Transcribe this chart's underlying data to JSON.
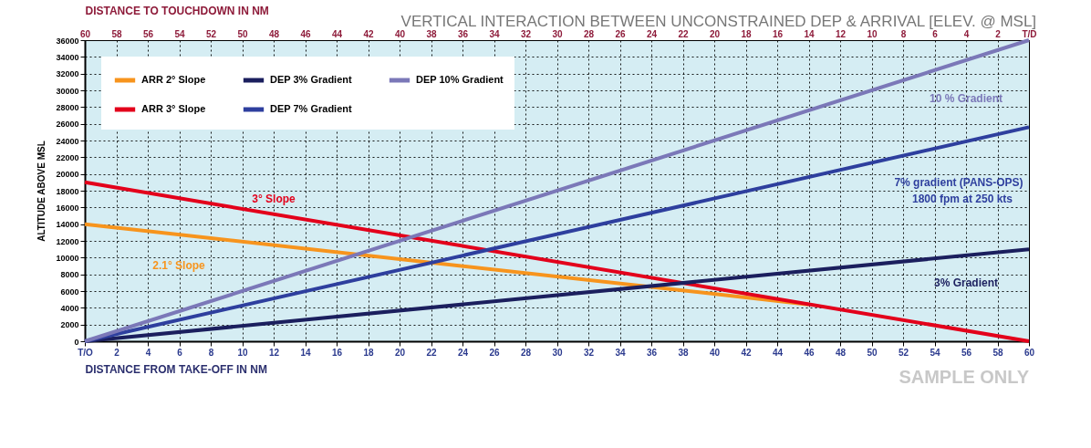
{
  "chart_data": {
    "type": "line",
    "title": "VERTICAL INTERACTION BETWEEN UNCONSTRAINED DEP & ARRIVAL [ELEV. @ MSL]",
    "xlabel": "DISTANCE FROM TAKE-OFF IN NM",
    "x2label": "DISTANCE TO TOUCHDOWN IN NM",
    "ylabel": "ALTITUDE ABOVE MSL",
    "series": [
      {
        "name": "ARR 2° Slope",
        "color": "#f7941d",
        "x": [
          0,
          46
        ],
        "values": [
          14000,
          4400
        ]
      },
      {
        "name": "ARR 3° Slope",
        "color": "#e3001b",
        "x": [
          0,
          60
        ],
        "values": [
          19000,
          0
        ]
      },
      {
        "name": "DEP 3% Gradient",
        "color": "#1b1f5e",
        "x": [
          0,
          60
        ],
        "values": [
          0,
          11000
        ]
      },
      {
        "name": "DEP 7% Gradient",
        "color": "#2e3f9e",
        "x": [
          0,
          60
        ],
        "values": [
          0,
          25600
        ]
      },
      {
        "name": "DEP 10% Gradient",
        "color": "#7b78b8",
        "x": [
          0,
          60
        ],
        "values": [
          0,
          36000
        ]
      }
    ],
    "xlim": [
      0,
      60
    ],
    "xticks": [
      {
        "value": 0,
        "label": "T/O"
      },
      2,
      4,
      6,
      8,
      10,
      12,
      14,
      16,
      18,
      20,
      22,
      24,
      26,
      28,
      30,
      32,
      34,
      36,
      38,
      40,
      42,
      44,
      46,
      48,
      50,
      52,
      54,
      56,
      58,
      60
    ],
    "x2lim": [
      60,
      0
    ],
    "x2ticks": [
      60,
      58,
      56,
      54,
      52,
      50,
      48,
      46,
      44,
      42,
      40,
      38,
      36,
      34,
      32,
      30,
      28,
      26,
      24,
      22,
      20,
      18,
      16,
      14,
      12,
      10,
      8,
      6,
      4,
      2,
      {
        "value": 0,
        "label": "T/D"
      }
    ],
    "ylim": [
      0,
      36000
    ],
    "yticks": [
      0,
      2000,
      4000,
      6000,
      8000,
      10000,
      12000,
      14000,
      16000,
      18000,
      20000,
      22000,
      24000,
      26000,
      28000,
      30000,
      32000,
      34000,
      36000
    ],
    "grid": true,
    "legend": "top left",
    "line_style": "solid",
    "marker": "none",
    "annotations": [
      "3° Slope",
      "2.1° Slope",
      "10 % Gradient",
      "7% gradient (PANS-OPS)",
      "1800 fpm at 250 kts",
      "3% Gradient",
      "SAMPLE ONLY"
    ]
  }
}
